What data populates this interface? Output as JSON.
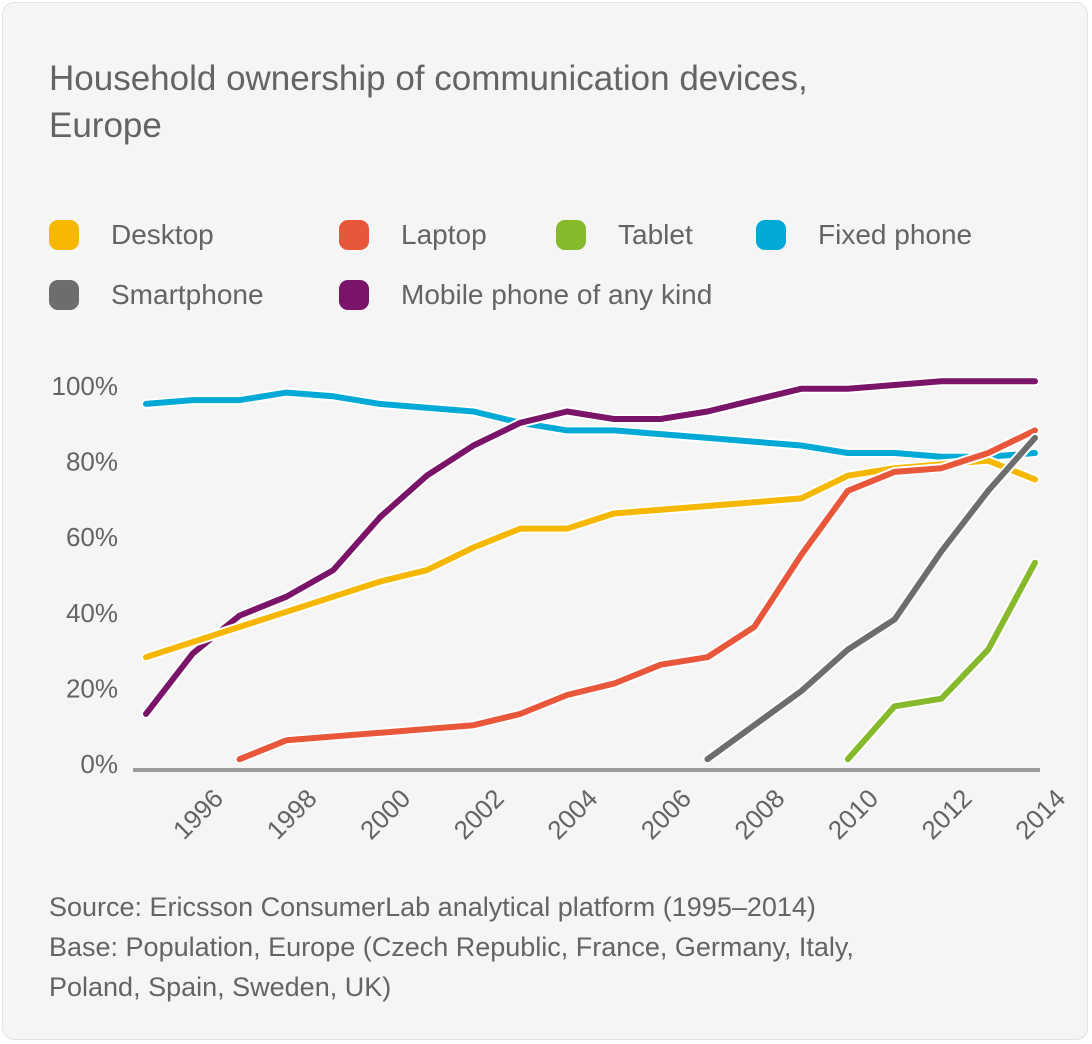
{
  "chart_data": {
    "type": "line",
    "title": "Household ownership of communication devices, Europe",
    "x_ticks": [
      "1996",
      "1998",
      "2000",
      "2002",
      "2004",
      "2006",
      "2008",
      "2010",
      "2012",
      "2014"
    ],
    "y_ticks": [
      "0%",
      "20%",
      "40%",
      "60%",
      "80%",
      "100%"
    ],
    "xlim": [
      1995,
      2014
    ],
    "ylim": [
      0,
      100
    ],
    "grid": false,
    "legend_position": "top",
    "series": [
      {
        "name": "Desktop",
        "color": "#f5b700",
        "x": [
          1995,
          1996,
          1997,
          1998,
          1999,
          2000,
          2001,
          2002,
          2003,
          2004,
          2005,
          2006,
          2007,
          2008,
          2009,
          2010,
          2011,
          2012,
          2013,
          2014
        ],
        "y": [
          28,
          32,
          36,
          40,
          44,
          48,
          51,
          57,
          62,
          62,
          66,
          67,
          68,
          69,
          70,
          76,
          78,
          79,
          80,
          75
        ]
      },
      {
        "name": "Laptop",
        "color": "#e8573a",
        "x": [
          1997,
          1998,
          1999,
          2000,
          2001,
          2002,
          2003,
          2004,
          2005,
          2006,
          2007,
          2008,
          2009,
          2010,
          2011,
          2012,
          2013,
          2014
        ],
        "y": [
          1,
          6,
          7,
          8,
          9,
          10,
          13,
          18,
          21,
          26,
          28,
          36,
          55,
          72,
          77,
          78,
          82,
          88
        ]
      },
      {
        "name": "Tablet",
        "color": "#86b92b",
        "x": [
          2010,
          2011,
          2012,
          2013,
          2014
        ],
        "y": [
          1,
          15,
          17,
          30,
          53
        ]
      },
      {
        "name": "Fixed phone",
        "color": "#00a9d6",
        "x": [
          1995,
          1996,
          1997,
          1998,
          1999,
          2000,
          2001,
          2002,
          2003,
          2004,
          2005,
          2006,
          2007,
          2008,
          2009,
          2010,
          2011,
          2012,
          2013,
          2014
        ],
        "y": [
          95,
          96,
          96,
          98,
          97,
          95,
          94,
          93,
          90,
          88,
          88,
          87,
          86,
          85,
          84,
          82,
          82,
          81,
          81,
          82
        ]
      },
      {
        "name": "Smartphone",
        "color": "#6d6d6d",
        "x": [
          2007,
          2008,
          2009,
          2010,
          2011,
          2012,
          2013,
          2014
        ],
        "y": [
          1,
          10,
          19,
          30,
          38,
          56,
          72,
          86
        ]
      },
      {
        "name": "Mobile phone of any kind",
        "color": "#7a1468",
        "x": [
          1995,
          1996,
          1997,
          1998,
          1999,
          2000,
          2001,
          2002,
          2003,
          2004,
          2005,
          2006,
          2007,
          2008,
          2009,
          2010,
          2011,
          2012,
          2013,
          2014
        ],
        "y": [
          13,
          29,
          39,
          44,
          51,
          65,
          76,
          84,
          90,
          93,
          91,
          91,
          93,
          96,
          99,
          99,
          100,
          101,
          101,
          101
        ]
      }
    ]
  },
  "source": {
    "line1": "Source: Ericsson ConsumerLab analytical platform (1995–2014)",
    "line2": "Base: Population, Europe (Czech Republic, France, Germany, Italy,",
    "line3": "Poland, Spain, Sweden, UK)"
  },
  "colors": {
    "background": "#f5f5f5",
    "text": "#646464",
    "axis": "#9b9b9b"
  }
}
